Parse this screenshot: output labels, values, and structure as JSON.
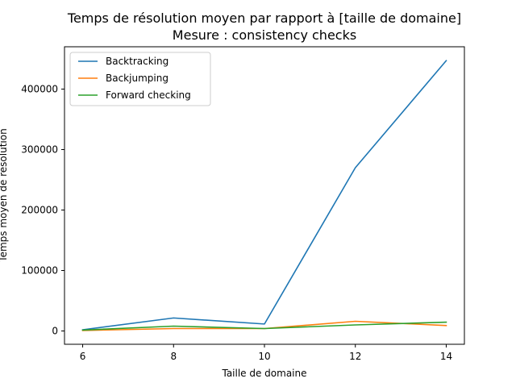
{
  "chart_data": {
    "type": "line",
    "title": "Temps de résolution moyen par rapport à [taille de domaine]",
    "subtitle": "Mesure : consistency checks",
    "xlabel": "Taille de domaine",
    "ylabel": "Temps moyen de résolution",
    "x": [
      6,
      8,
      10,
      12,
      14
    ],
    "xlim": [
      5.6,
      14.4
    ],
    "ylim": [
      -22000,
      470000
    ],
    "xticks": [
      6,
      8,
      10,
      12,
      14
    ],
    "yticks": [
      0,
      100000,
      200000,
      300000,
      400000
    ],
    "grid": false,
    "legend_position": "top-left",
    "series": [
      {
        "name": "Backtracking",
        "color": "#1f77b4",
        "values": [
          2000,
          21500,
          11500,
          270000,
          447000
        ]
      },
      {
        "name": "Backjumping",
        "color": "#ff7f0e",
        "values": [
          800,
          4000,
          4000,
          16000,
          9000
        ]
      },
      {
        "name": "Forward checking",
        "color": "#2ca02c",
        "values": [
          1500,
          8000,
          4000,
          10000,
          14500
        ]
      }
    ]
  }
}
